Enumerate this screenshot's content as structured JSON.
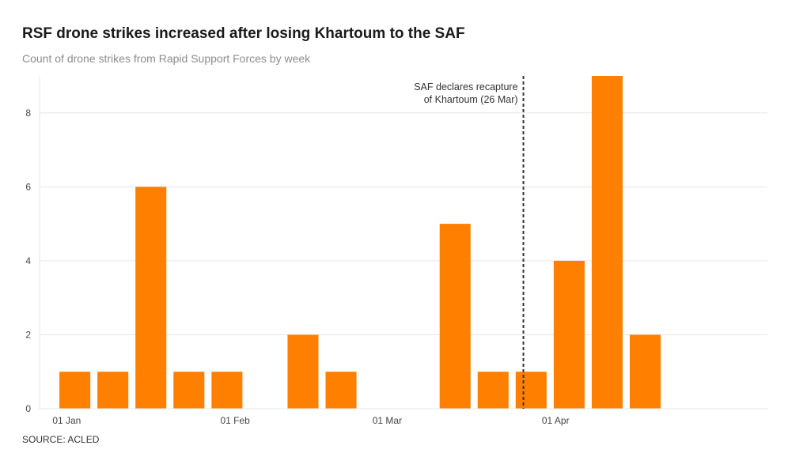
{
  "header": {
    "title": "RSF drone strikes increased after losing Khartoum to the SAF",
    "subtitle": "Count of drone strikes from Rapid Support Forces by week"
  },
  "footer": {
    "source": "SOURCE: ACLED"
  },
  "colors": {
    "bar": "#ff7f00",
    "grid": "#e6e6e6",
    "annotation_line": "#333333"
  },
  "chart_data": {
    "type": "bar",
    "title": "RSF drone strikes increased after losing Khartoum to the SAF",
    "subtitle": "Count of drone strikes from Rapid Support Forces by week",
    "xlabel": "",
    "ylabel": "",
    "x_axis_type": "date",
    "x_ticks": [
      {
        "date": "2025-01-01",
        "label": "01 Jan"
      },
      {
        "date": "2025-02-01",
        "label": "01 Feb"
      },
      {
        "date": "2025-03-01",
        "label": "01 Mar"
      },
      {
        "date": "2025-04-01",
        "label": "01 Apr"
      }
    ],
    "xlim": [
      "2024-12-27",
      "2025-05-10"
    ],
    "ylim": [
      0,
      9
    ],
    "y_ticks": [
      0,
      2,
      4,
      6,
      8
    ],
    "grid": true,
    "legend": "none",
    "series": [
      {
        "values": [
          {
            "x": "2024-12-30",
            "y": 1
          },
          {
            "x": "2025-01-06",
            "y": 1
          },
          {
            "x": "2025-01-13",
            "y": 6
          },
          {
            "x": "2025-01-20",
            "y": 1
          },
          {
            "x": "2025-01-27",
            "y": 1
          },
          {
            "x": "2025-02-03",
            "y": 0
          },
          {
            "x": "2025-02-10",
            "y": 2
          },
          {
            "x": "2025-02-17",
            "y": 1
          },
          {
            "x": "2025-02-24",
            "y": 0
          },
          {
            "x": "2025-03-03",
            "y": 0
          },
          {
            "x": "2025-03-10",
            "y": 5
          },
          {
            "x": "2025-03-17",
            "y": 1
          },
          {
            "x": "2025-03-24",
            "y": 1
          },
          {
            "x": "2025-03-31",
            "y": 4
          },
          {
            "x": "2025-04-07",
            "y": 9
          },
          {
            "x": "2025-04-14",
            "y": 2
          }
        ]
      }
    ],
    "annotations": [
      {
        "type": "vline",
        "x": "2025-03-26",
        "text_lines": [
          "SAF declares recapture",
          "of Khartoum (26 Mar)"
        ]
      }
    ]
  }
}
